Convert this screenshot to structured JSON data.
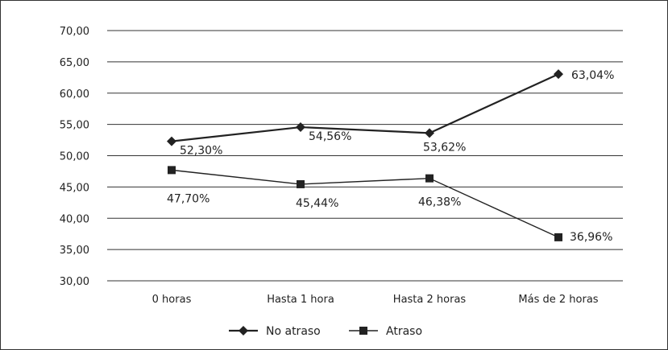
{
  "chart_data": {
    "type": "line",
    "categories": [
      "0 horas",
      "Hasta 1 hora",
      "Hasta 2 horas",
      "Más de 2 horas"
    ],
    "series": [
      {
        "name": "No atraso",
        "values": [
          52.3,
          54.56,
          53.62,
          63.04
        ],
        "labels": [
          "52,30%",
          "54,56%",
          "53,62%",
          "63,04%"
        ],
        "marker": "diamond",
        "color": "#222222"
      },
      {
        "name": "Atraso",
        "values": [
          47.7,
          45.44,
          46.38,
          36.96
        ],
        "labels": [
          "47,70%",
          "45,44%",
          "46,38%",
          "36,96%"
        ],
        "marker": "square",
        "color": "#222222"
      }
    ],
    "yticks": [
      "30,00",
      "35,00",
      "40,00",
      "45,00",
      "50,00",
      "55,00",
      "60,00",
      "65,00",
      "70,00"
    ],
    "ylim": [
      30,
      70
    ],
    "grid": true,
    "legend": "bottom",
    "title": "",
    "xlabel": "",
    "ylabel": ""
  }
}
